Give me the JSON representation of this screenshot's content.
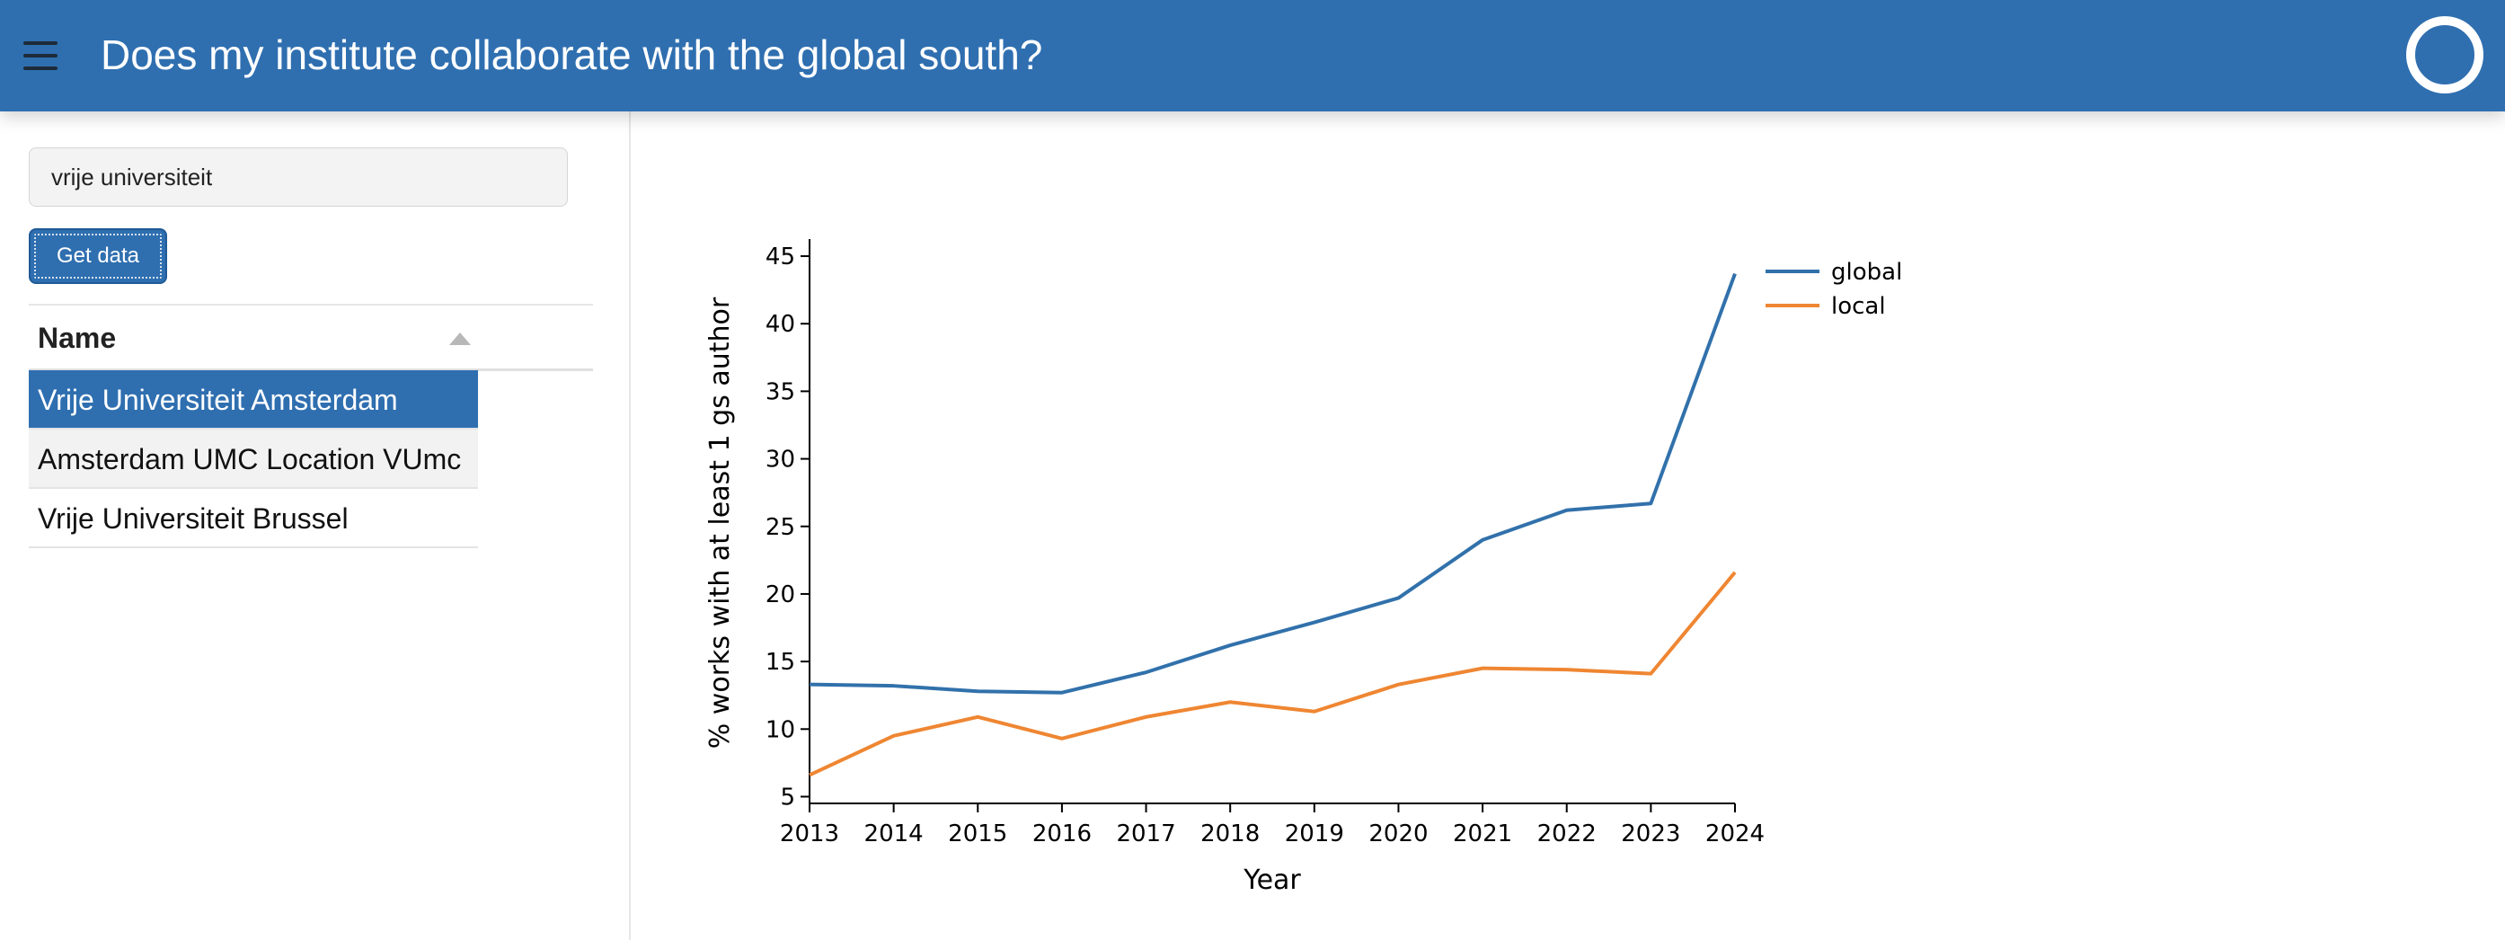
{
  "header": {
    "title": "Does my institute collaborate with the global south?"
  },
  "sidebar": {
    "search_value": "vrije universiteit",
    "button_label": "Get data",
    "table": {
      "column": "Name",
      "rows": [
        "Vrije Universiteit Amsterdam",
        "Amsterdam UMC Location VUmc",
        "Vrije Universiteit Brussel"
      ],
      "selected_index": 0
    }
  },
  "colors": {
    "header": "#2f6fb0",
    "global": "#3171ab",
    "local": "#ef8632"
  },
  "chart_data": {
    "type": "line",
    "title": "",
    "xlabel": "Year",
    "ylabel": "% works with at least 1 gs author",
    "x": [
      2013,
      2014,
      2015,
      2016,
      2017,
      2018,
      2019,
      2020,
      2021,
      2022,
      2023,
      2024
    ],
    "xlim": [
      2013,
      2024
    ],
    "ylim": [
      4.5,
      46
    ],
    "yticks": [
      5,
      10,
      15,
      20,
      25,
      30,
      35,
      40,
      45
    ],
    "grid": false,
    "legend": "top-right",
    "series": [
      {
        "name": "global",
        "color": "#3171ab",
        "values": [
          13.3,
          13.2,
          12.8,
          12.7,
          14.2,
          16.2,
          17.9,
          19.7,
          24.0,
          26.2,
          26.7,
          43.7
        ]
      },
      {
        "name": "local",
        "color": "#ef8632",
        "values": [
          6.6,
          9.5,
          10.9,
          9.3,
          10.9,
          12.0,
          11.3,
          13.3,
          14.5,
          14.4,
          14.1,
          21.6
        ]
      }
    ]
  }
}
